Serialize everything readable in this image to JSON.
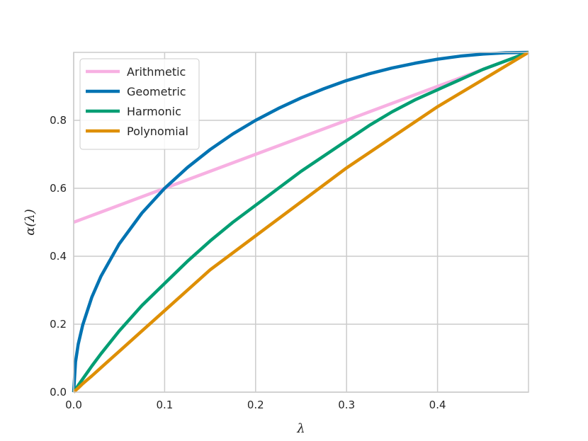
{
  "chart_data": {
    "type": "line",
    "title": "",
    "xlabel": "λ",
    "ylabel": "α(λ)",
    "xlim": [
      0.0,
      0.5
    ],
    "ylim": [
      0.0,
      1.0
    ],
    "xticks": [
      0.0,
      0.1,
      0.2,
      0.3,
      0.4
    ],
    "yticks": [
      0.0,
      0.2,
      0.4,
      0.6,
      0.8
    ],
    "xtick_labels": [
      "0.0",
      "0.1",
      "0.2",
      "0.3",
      "0.4"
    ],
    "ytick_labels": [
      "0.0",
      "0.2",
      "0.4",
      "0.6",
      "0.8"
    ],
    "grid": true,
    "legend_position": "top-left",
    "x": [
      0.0,
      0.002,
      0.005,
      0.01,
      0.02,
      0.03,
      0.05,
      0.075,
      0.1,
      0.125,
      0.15,
      0.175,
      0.2,
      0.225,
      0.25,
      0.275,
      0.3,
      0.325,
      0.35,
      0.375,
      0.4,
      0.425,
      0.45,
      0.475,
      0.5
    ],
    "series": [
      {
        "name": "Arithmetic",
        "color": "#f7b0e2",
        "values": [
          0.5,
          0.502,
          0.505,
          0.51,
          0.52,
          0.53,
          0.55,
          0.575,
          0.6,
          0.625,
          0.65,
          0.675,
          0.7,
          0.725,
          0.75,
          0.775,
          0.8,
          0.825,
          0.85,
          0.875,
          0.9,
          0.925,
          0.95,
          0.975,
          1.0
        ]
      },
      {
        "name": "Geometric",
        "color": "#0173b2",
        "values": [
          0.0,
          0.089,
          0.141,
          0.198,
          0.28,
          0.341,
          0.436,
          0.527,
          0.6,
          0.661,
          0.714,
          0.76,
          0.8,
          0.835,
          0.866,
          0.893,
          0.917,
          0.937,
          0.954,
          0.968,
          0.98,
          0.989,
          0.995,
          0.999,
          1.0
        ]
      },
      {
        "name": "Harmonic",
        "color": "#029e73",
        "values": [
          0.0,
          0.008,
          0.02,
          0.039,
          0.077,
          0.113,
          0.18,
          0.255,
          0.32,
          0.385,
          0.445,
          0.5,
          0.55,
          0.6,
          0.65,
          0.695,
          0.74,
          0.785,
          0.825,
          0.86,
          0.89,
          0.92,
          0.95,
          0.975,
          1.0
        ]
      },
      {
        "name": "Polynomial",
        "color": "#de8f05",
        "values": [
          0.0,
          0.005,
          0.012,
          0.025,
          0.048,
          0.072,
          0.12,
          0.18,
          0.24,
          0.3,
          0.36,
          0.41,
          0.46,
          0.51,
          0.56,
          0.61,
          0.66,
          0.705,
          0.75,
          0.795,
          0.84,
          0.88,
          0.92,
          0.96,
          1.0
        ]
      }
    ]
  }
}
